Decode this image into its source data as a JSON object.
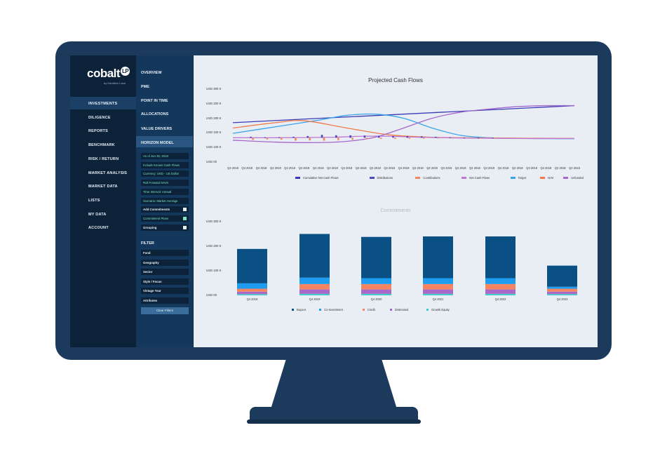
{
  "sidebar": {
    "logo": "cobalt",
    "logo_badge": "LP",
    "logo_sub": "by Hamilton Lane",
    "items": [
      "INVESTMENTS",
      "DILIGENCE",
      "REPORTS",
      "BENCHMARK",
      "RISK / RETURN",
      "MARKET ANALYSIS",
      "MARKET DATA",
      "LISTS",
      "MY DATA",
      "ACCOUNT"
    ],
    "active": "INVESTMENTS"
  },
  "subnav": {
    "items": [
      "OVERVIEW",
      "PME",
      "POINT IN TIME",
      "ALLOCATIONS",
      "VALUE DRIVERS",
      "HORIZON MODEL"
    ],
    "active": "HORIZON MODEL",
    "options": [
      {
        "label": "As of Jun 30, 2018",
        "check": null
      },
      {
        "label": "Include Known Cash Flows",
        "check": null
      },
      {
        "label": "Currency: USD - US Dollar",
        "check": null
      },
      {
        "label": "Roll Forward NAVs",
        "check": null
      },
      {
        "label": "Time Interval: Annual",
        "check": null
      },
      {
        "label": "Scenario: Market Average",
        "check": null
      },
      {
        "label": "Add Commitments",
        "check": "off"
      },
      {
        "label": "Commitment Plans",
        "check": "on"
      },
      {
        "label": "Grouping",
        "check": "off"
      }
    ],
    "filter_title": "FILTER",
    "filters": [
      "Fund",
      "Geography",
      "Sector",
      "Style / Focus",
      "Vintage Year",
      "Attributes"
    ],
    "clear_label": "Clear Filters"
  },
  "colors": {
    "cumulative": "#3b3bb8",
    "distributions": "#4a47c4",
    "contributions": "#f08a5d",
    "net_cash_flows": "#c078d0",
    "target": "#3aa3ea",
    "nav": "#f07a4a",
    "unfunded": "#a568cc",
    "buyout": "#0a5085",
    "co_investment": "#1e9df0",
    "credit": "#f58461",
    "distressed": "#a86ac8",
    "growth_equity": "#3ed0c8"
  },
  "chart_data": [
    {
      "type": "line",
      "title": "Projected Cash Flows",
      "yticks": [
        "USD 300 K",
        "USD 200 K",
        "USD 200 K",
        "USD 100 K",
        "USD 100 K",
        "USD 00"
      ],
      "categories": [
        "Q4 2018",
        "Q4 2018",
        "Q4 2018",
        "Q4 2018",
        "Q4 2018",
        "Q4 2018",
        "Q4 2018",
        "Q4 2018",
        "Q4 2018",
        "Q4 2018",
        "Q4 2018",
        "Q4 2018",
        "Q4 2018",
        "Q4 2018",
        "Q4 2018",
        "Q4 2018",
        "Q4 2018",
        "Q4 2018",
        "Q4 2018",
        "Q4 2018",
        "Q4 2018",
        "Q4 2018",
        "Q4 2018",
        "Q4 2018",
        "Q4 2018"
      ],
      "ylim": [
        0,
        300
      ],
      "series": [
        {
          "name": "Cumulative Net Cash Flows",
          "color": "cumulative",
          "kind": "line",
          "values": [
            [
              0,
              162
            ],
            [
              24,
              232
            ]
          ]
        },
        {
          "name": "Target",
          "color": "target",
          "kind": "line",
          "values": [
            [
              0,
              118
            ],
            [
              3,
              145
            ],
            [
              6,
              172
            ],
            [
              8,
              192
            ],
            [
              10,
              197
            ],
            [
              12,
              180
            ],
            [
              14,
              140
            ],
            [
              16,
              110
            ],
            [
              18,
              100
            ],
            [
              20,
              97
            ],
            [
              24,
              96
            ]
          ]
        },
        {
          "name": "NAV",
          "color": "nav",
          "kind": "line",
          "values": [
            [
              0,
              140
            ],
            [
              3,
              162
            ],
            [
              5,
              170
            ],
            [
              8,
              140
            ],
            [
              11,
              112
            ],
            [
              14,
              102
            ],
            [
              18,
              99
            ],
            [
              24,
              97
            ]
          ]
        },
        {
          "name": "Unfunded",
          "color": "unfunded",
          "kind": "line",
          "values": [
            [
              0,
              90
            ],
            [
              3,
              82
            ],
            [
              6,
              80
            ],
            [
              8,
              85
            ],
            [
              10,
              102
            ],
            [
              12,
              140
            ],
            [
              14,
              180
            ],
            [
              16,
              205
            ],
            [
              18,
              218
            ],
            [
              20,
              228
            ],
            [
              22,
              232
            ],
            [
              24,
              232
            ]
          ]
        },
        {
          "name": "Net Cash Flows",
          "color": "net_cash_flows",
          "kind": "line",
          "values": [
            [
              0,
              100
            ],
            [
              3,
              100
            ],
            [
              7,
              102
            ],
            [
              9,
              106
            ],
            [
              11,
              106
            ],
            [
              13,
              102
            ],
            [
              16,
              99
            ],
            [
              20,
              97
            ],
            [
              24,
              97
            ]
          ]
        },
        {
          "name": "Distributions",
          "color": "distributions",
          "kind": "bar",
          "values": [
            [
              1,
              104
            ],
            [
              2,
              102
            ],
            [
              3,
              102
            ],
            [
              4,
              104
            ],
            [
              5,
              107
            ],
            [
              6,
              112
            ],
            [
              7,
              110
            ],
            [
              8,
              110
            ],
            [
              9,
              109
            ],
            [
              10,
              108
            ],
            [
              11,
              107
            ],
            [
              12,
              107
            ],
            [
              13,
              106
            ],
            [
              14,
              104
            ],
            [
              15,
              102
            ],
            [
              16,
              100
            ],
            [
              17,
              99
            ],
            [
              18,
              99
            ]
          ]
        },
        {
          "name": "Contributions",
          "color": "contributions",
          "kind": "bar",
          "values": [
            [
              1,
              91
            ],
            [
              2,
              93
            ],
            [
              3,
              92
            ],
            [
              4,
              88
            ],
            [
              5,
              89
            ],
            [
              6,
              88
            ],
            [
              7,
              90
            ],
            [
              8,
              92
            ],
            [
              9,
              94
            ],
            [
              10,
              95
            ],
            [
              11,
              95
            ],
            [
              12,
              96
            ],
            [
              13,
              96
            ],
            [
              14,
              97
            ],
            [
              15,
              97
            ],
            [
              16,
              98
            ],
            [
              17,
              98
            ],
            [
              18,
              98
            ]
          ]
        }
      ]
    },
    {
      "type": "bar",
      "title": "Commitments",
      "yticks": [
        "USD 300 K",
        "USD 200 K",
        "USD 100 K",
        "USD 00"
      ],
      "categories": [
        "Q4 2018",
        "Q4 2019",
        "Q4 2020",
        "Q4 2021",
        "Q4 2022",
        "Q4 2023"
      ],
      "ylim": [
        0,
        300
      ],
      "series": [
        {
          "name": "Buyout",
          "color": "buyout",
          "values": [
            140,
            178,
            168,
            170,
            170,
            86
          ]
        },
        {
          "name": "Co-Investment",
          "color": "co_investment",
          "values": [
            22,
            26,
            24,
            24,
            24,
            8
          ]
        },
        {
          "name": "Credit",
          "color": "credit",
          "values": [
            12,
            22,
            22,
            22,
            22,
            12
          ]
        },
        {
          "name": "Distressed",
          "color": "distressed",
          "values": [
            10,
            18,
            18,
            18,
            18,
            10
          ]
        },
        {
          "name": "Growth Equity",
          "color": "growth_equity",
          "values": [
            5,
            6,
            6,
            6,
            6,
            5
          ]
        }
      ]
    }
  ]
}
